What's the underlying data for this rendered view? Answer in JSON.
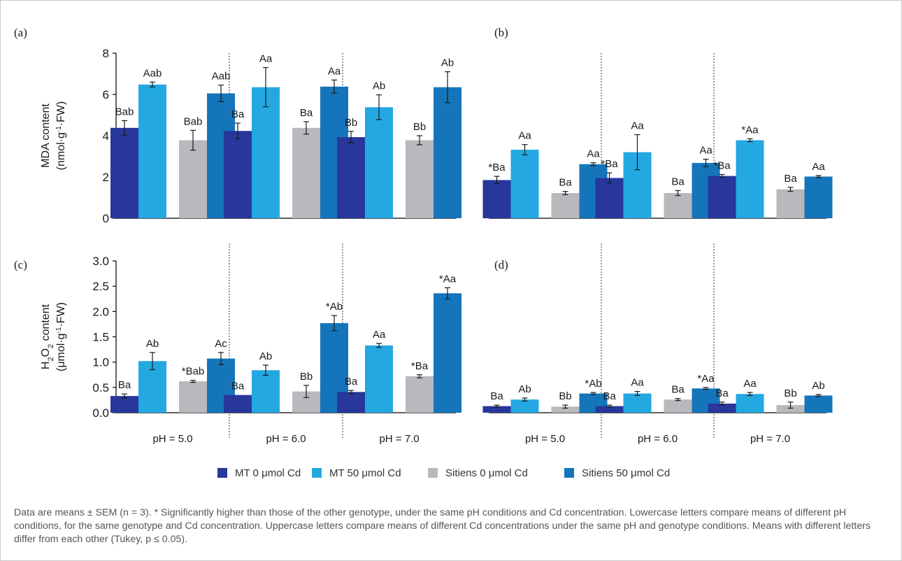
{
  "colors": {
    "mt0": "#27379a",
    "mt50": "#23a8e1",
    "sit0": "#b8b8bd",
    "sit50": "#1575ba",
    "axis": "#000000",
    "divider": "#333333",
    "caption": "#555555"
  },
  "chart_data": [
    {
      "panel": "(a)",
      "type": "bar",
      "ylim": [
        0,
        8
      ],
      "yticks": [
        "0",
        "2",
        "4",
        "6",
        "8"
      ],
      "ylabel": "MDA content",
      "ylabel_unit_parts": [
        "(nmol·g",
        "-1",
        "·FW)"
      ],
      "groups": [
        "pH = 5.0",
        "pH = 6.0",
        "pH = 7.0"
      ],
      "series": [
        {
          "name": "MT 0 μmol Cd",
          "values": [
            4.38,
            4.23,
            3.93
          ],
          "errors": [
            0.35,
            0.38,
            0.28
          ],
          "labels": [
            "Bab",
            "Ba",
            "Bb"
          ]
        },
        {
          "name": "MT 50 μmol Cd",
          "values": [
            6.48,
            6.35,
            5.38
          ],
          "errors": [
            0.12,
            0.95,
            0.6
          ],
          "labels": [
            "Aab",
            "Aa",
            "Ab"
          ]
        },
        {
          "name": "Sitiens 0 μmol Cd",
          "values": [
            3.78,
            4.38,
            3.78
          ],
          "errors": [
            0.48,
            0.3,
            0.22
          ],
          "labels": [
            "Bab",
            "Ba",
            "Bb"
          ]
        },
        {
          "name": "Sitiens 50 μmol Cd",
          "values": [
            6.05,
            6.38,
            6.35
          ],
          "errors": [
            0.4,
            0.32,
            0.75
          ],
          "labels": [
            "Aab",
            "Aa",
            "Ab"
          ]
        }
      ]
    },
    {
      "panel": "(b)",
      "type": "bar",
      "ylim": [
        0,
        8
      ],
      "yticks": [],
      "groups": [
        "pH = 5.0",
        "pH = 6.0",
        "pH = 7.0"
      ],
      "series": [
        {
          "name": "MT 0 μmol Cd",
          "values": [
            1.85,
            1.95,
            2.05
          ],
          "errors": [
            0.18,
            0.25,
            0.07
          ],
          "labels": [
            "*Ba",
            "*Ba",
            "*Ba"
          ]
        },
        {
          "name": "MT 50 μmol Cd",
          "values": [
            3.32,
            3.2,
            3.78
          ],
          "errors": [
            0.25,
            0.85,
            0.07
          ],
          "labels": [
            "Aa",
            "Aa",
            "*Aa"
          ]
        },
        {
          "name": "Sitiens 0 μmol Cd",
          "values": [
            1.22,
            1.22,
            1.4
          ],
          "errors": [
            0.08,
            0.12,
            0.1
          ],
          "labels": [
            "Ba",
            "Ba",
            "Ba"
          ]
        },
        {
          "name": "Sitiens 50 μmol Cd",
          "values": [
            2.62,
            2.68,
            2.02
          ],
          "errors": [
            0.07,
            0.18,
            0.05
          ],
          "labels": [
            "Aa",
            "Aa",
            "Aa"
          ]
        }
      ]
    },
    {
      "panel": "(c)",
      "type": "bar",
      "ylim": [
        0,
        3
      ],
      "yticks": [
        "0.0",
        "0.5",
        "1.0",
        "1.5",
        "2.0",
        "2.5",
        "3.0"
      ],
      "ylabel_parts": [
        "H",
        "2",
        "O",
        "2",
        " content"
      ],
      "ylabel_unit_parts": [
        "(μmol·g",
        "-1",
        "·FW)"
      ],
      "groups": [
        "pH = 5.0",
        "pH = 6.0",
        "pH = 7.0"
      ],
      "series": [
        {
          "name": "MT 0 μmol Cd",
          "values": [
            0.33,
            0.35,
            0.41
          ],
          "errors": [
            0.04,
            0,
            0.03
          ],
          "labels": [
            "Ba",
            "Ba",
            "Ba"
          ]
        },
        {
          "name": "MT 50 μmol Cd",
          "values": [
            1.02,
            0.84,
            1.33
          ],
          "errors": [
            0.17,
            0.1,
            0.04
          ],
          "labels": [
            "Ab",
            "Ab",
            "Aa"
          ]
        },
        {
          "name": "Sitiens 0 μmol Cd",
          "values": [
            0.62,
            0.42,
            0.72
          ],
          "errors": [
            0.02,
            0.12,
            0.03
          ],
          "labels": [
            "*Bab",
            "Bb",
            "*Ba"
          ]
        },
        {
          "name": "Sitiens 50 μmol Cd",
          "values": [
            1.07,
            1.77,
            2.36
          ],
          "errors": [
            0.12,
            0.15,
            0.11
          ],
          "labels": [
            "Ac",
            "*Ab",
            "*Aa"
          ]
        }
      ]
    },
    {
      "panel": "(d)",
      "type": "bar",
      "ylim": [
        0,
        3
      ],
      "yticks": [],
      "groups": [
        "pH = 5.0",
        "pH = 6.0",
        "pH = 7.0"
      ],
      "series": [
        {
          "name": "MT 0 μmol Cd",
          "values": [
            0.13,
            0.13,
            0.18
          ],
          "errors": [
            0.02,
            0.02,
            0.03
          ],
          "labels": [
            "Ba",
            "Ba",
            "Ba"
          ]
        },
        {
          "name": "MT 50 μmol Cd",
          "values": [
            0.26,
            0.38,
            0.37
          ],
          "errors": [
            0.03,
            0.04,
            0.03
          ],
          "labels": [
            "Ab",
            "Aa",
            "Aa"
          ]
        },
        {
          "name": "Sitiens 0 μmol Cd",
          "values": [
            0.12,
            0.26,
            0.15
          ],
          "errors": [
            0.03,
            0.02,
            0.06
          ],
          "labels": [
            "Bb",
            "Ba",
            "Bb"
          ]
        },
        {
          "name": "Sitiens 50 μmol Cd",
          "values": [
            0.38,
            0.48,
            0.34
          ],
          "errors": [
            0.02,
            0.02,
            0.02
          ],
          "labels": [
            "*Ab",
            "*Aa",
            "Ab"
          ]
        }
      ]
    }
  ],
  "legend": [
    "MT 0 μmol Cd",
    "MT 50 μmol Cd",
    "Sitiens 0 μmol Cd",
    "Sitiens 50 μmol Cd"
  ],
  "caption": "Data are means ± SEM (n = 3). * Significantly higher than those of the other genotype, under the same pH conditions and Cd concentration. Lowercase letters compare means of different pH conditions, for the same genotype and Cd concentration. Uppercase letters compare means of different Cd concentrations under the same pH and genotype conditions. Means with different letters differ from each other (Tukey, p ≤ 0.05)."
}
